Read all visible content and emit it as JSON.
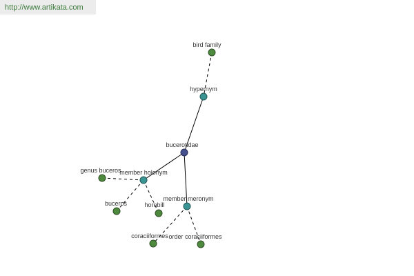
{
  "header": {
    "url": "http://www.artikata.com"
  },
  "nodes": [
    {
      "label": "bird family"
    },
    {
      "label": "hypernym"
    },
    {
      "label": "bucerotidae"
    },
    {
      "label": "member holonym"
    },
    {
      "label": "genus buceros"
    },
    {
      "label": "buceros"
    },
    {
      "label": "hornbill"
    },
    {
      "label": "member meronym"
    },
    {
      "label": "coraciiformes"
    },
    {
      "label": "order coraciiformes"
    }
  ]
}
